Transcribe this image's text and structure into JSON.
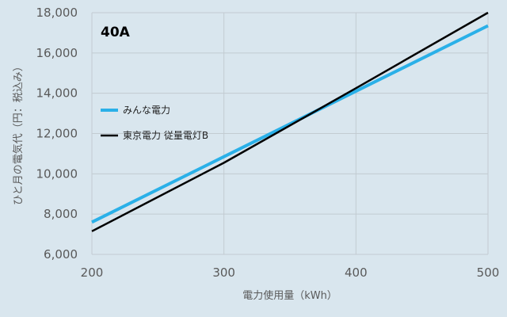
{
  "chart_data": {
    "type": "line",
    "title": "40A",
    "xlabel": "電力使用量（kWh）",
    "ylabel": "ひと月の電気代（円：税込み）",
    "xlim": [
      200,
      500
    ],
    "ylim": [
      6000,
      18000
    ],
    "x_ticks": [
      200,
      300,
      400,
      500
    ],
    "y_ticks": [
      6000,
      8000,
      10000,
      12000,
      14000,
      16000,
      18000
    ],
    "x_tick_labels": [
      "200",
      "300",
      "400",
      "500"
    ],
    "y_tick_labels": [
      "6,000",
      "8,000",
      "10,000",
      "12,000",
      "14,000",
      "16,000",
      "18,000"
    ],
    "grid": true,
    "legend_position": "middle-left",
    "series": [
      {
        "name": "みんな電力",
        "color": "#2ab0e8",
        "x": [
          200,
          300,
          400,
          500
        ],
        "y": [
          7600,
          10850,
          14100,
          17350
        ]
      },
      {
        "name": "東京電力 従量電灯B",
        "color": "#000000",
        "x": [
          200,
          300,
          400,
          500
        ],
        "y": [
          7150,
          10550,
          14250,
          18000
        ]
      }
    ]
  }
}
